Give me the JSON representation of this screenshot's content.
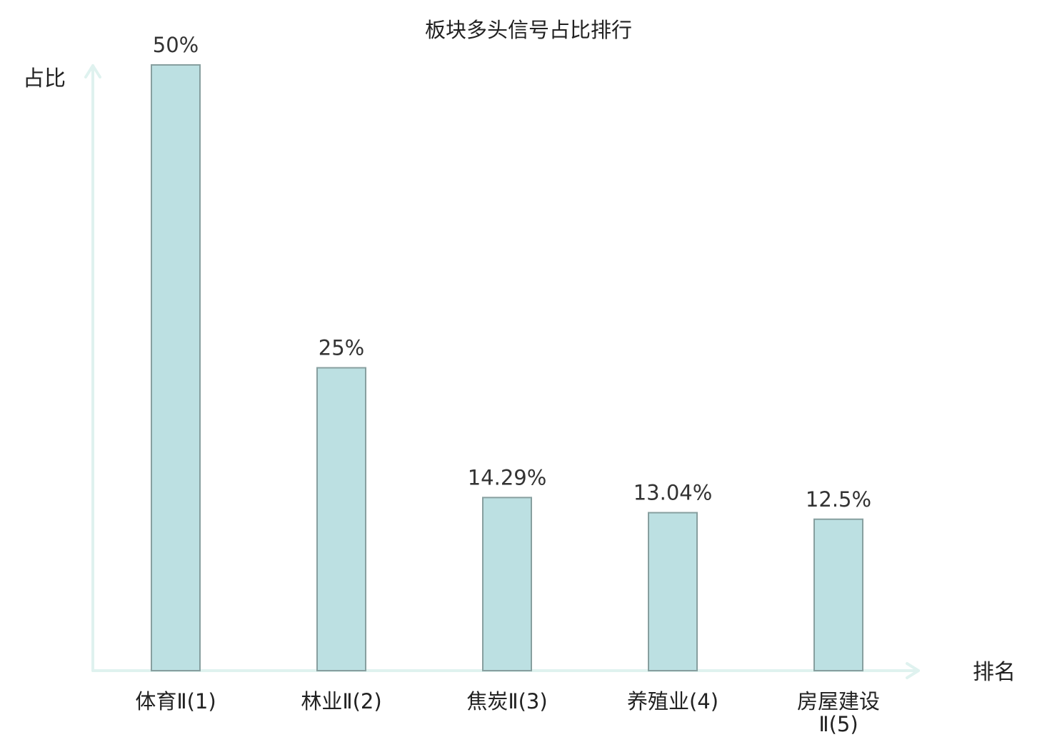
{
  "chart_data": {
    "type": "bar",
    "title": "板块多头信号占比排行",
    "xlabel": "排名",
    "ylabel": "占比",
    "ylim": [
      0,
      50
    ],
    "grid": false,
    "categories": [
      [
        "体育Ⅱ(1)"
      ],
      [
        "林业Ⅱ(2)"
      ],
      [
        "焦炭Ⅱ(3)"
      ],
      [
        "养殖业(4)"
      ],
      [
        "房屋建设",
        "Ⅱ(5)"
      ]
    ],
    "values": [
      50,
      25,
      14.29,
      13.04,
      12.5
    ],
    "value_labels": [
      "50%",
      "25%",
      "14.29%",
      "13.04%",
      "12.5%"
    ],
    "highlight_index": 3,
    "colors": {
      "bar_fill": "#bce0e2",
      "bar_stroke": "#879f9f",
      "axis": "#dff2ef",
      "highlight_text": "#e01d1d",
      "text": "#222222",
      "value_text": "#333333"
    }
  }
}
